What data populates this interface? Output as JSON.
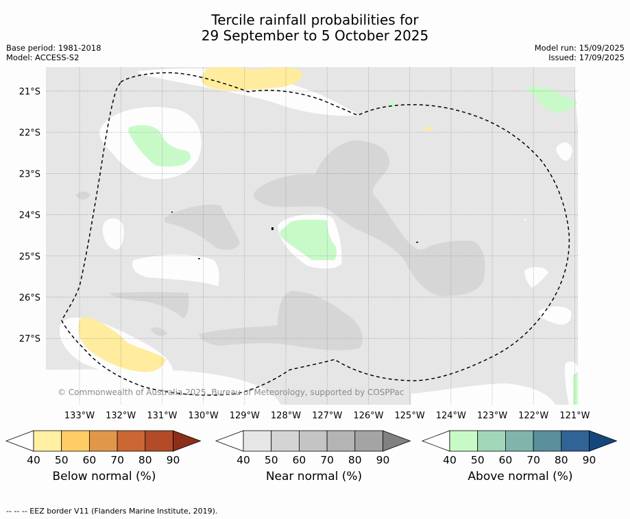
{
  "title": {
    "line1": "Tercile rainfall probabilities for",
    "line2": "29 September to 5 October 2025"
  },
  "meta": {
    "base_period": "Base period: 1981-2018",
    "model": "Model: ACCESS-S2",
    "model_run": "Model run: 15/09/2025",
    "issued": "Issued: 17/09/2025"
  },
  "map": {
    "lat_labels": [
      "21°S",
      "22°S",
      "23°S",
      "24°S",
      "25°S",
      "26°S",
      "27°S"
    ],
    "lon_labels": [
      "133°W",
      "132°W",
      "131°W",
      "130°W",
      "129°W",
      "128°W",
      "127°W",
      "126°W",
      "125°W",
      "124°W",
      "123°W",
      "122°W",
      "121°W"
    ],
    "copyright": "© Commonwealth of Australia 2025, Bureau of Meteorology, supported by COSPPac",
    "colors": {
      "near40": "#e6e6e6",
      "near50": "#d6d6d6",
      "below40": "#ffec9e",
      "above40": "#c8fac8"
    }
  },
  "legends": [
    {
      "name": "Below normal (%)",
      "ticks": [
        "40",
        "50",
        "60",
        "70",
        "80",
        "90"
      ],
      "colors": [
        "#ffffff",
        "#fff0a3",
        "#ffcc66",
        "#e0974a",
        "#cc6633",
        "#b34b28",
        "#8c2e1a"
      ]
    },
    {
      "name": "Near normal (%)",
      "ticks": [
        "40",
        "50",
        "60",
        "70",
        "80",
        "90"
      ],
      "colors": [
        "#ffffff",
        "#e6e6e6",
        "#d4d4d4",
        "#c4c4c4",
        "#b4b4b4",
        "#a4a4a4",
        "#808080"
      ]
    },
    {
      "name": "Above normal (%)",
      "ticks": [
        "40",
        "50",
        "60",
        "70",
        "80",
        "90"
      ],
      "colors": [
        "#ffffff",
        "#c8fac8",
        "#a2d6b9",
        "#81b5ac",
        "#5a8f9c",
        "#306496",
        "#14487d"
      ]
    }
  ],
  "footer": "--  --  -- EEZ border V11 (Flanders Marine Institute, 2019)."
}
